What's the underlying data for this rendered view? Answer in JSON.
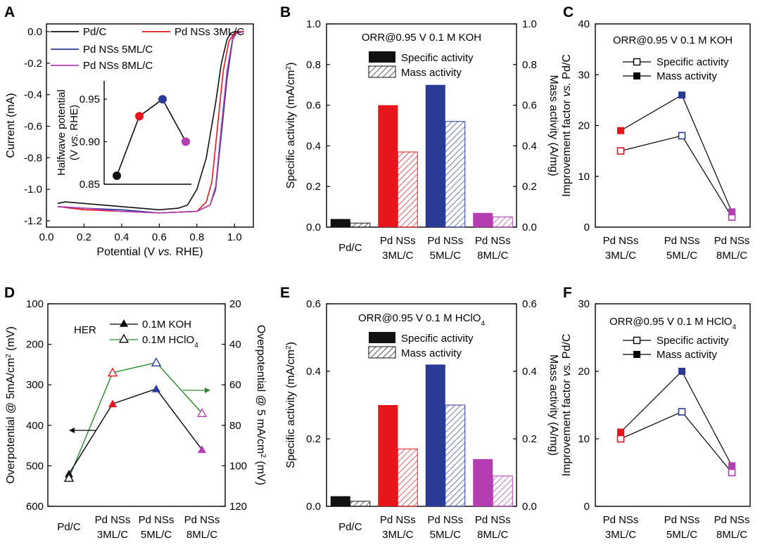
{
  "colors": {
    "black": "#111111",
    "red": "#e8161c",
    "blue": "#2b3a97",
    "magenta": "#b43db1",
    "green": "#2a8a2a"
  },
  "panels": {
    "a": "A",
    "b": "B",
    "c": "C",
    "d": "D",
    "e": "E",
    "f": "F"
  },
  "chart_data": [
    {
      "id": "A",
      "type": "line",
      "xlabel_pre": "Potential (V ",
      "xlabel_it": "vs.",
      "xlabel_post": " RHE)",
      "ylabel": "Current (mA)",
      "xlim": [
        0,
        1.1
      ],
      "ylim": [
        -1.2,
        0.0
      ],
      "xticks": [
        "0.0",
        "0.2",
        "0.4",
        "0.6",
        "0.8",
        "1.0"
      ],
      "yticks": [
        "0.0",
        "-0.2",
        "-0.4",
        "-0.6",
        "-0.8",
        "-1.0",
        "-1.2"
      ],
      "series": [
        {
          "name": "Pd/C",
          "color": "black",
          "x": [
            0.06,
            0.1,
            0.2,
            0.3,
            0.4,
            0.5,
            0.6,
            0.7,
            0.75,
            0.8,
            0.85,
            0.9,
            0.93,
            0.96,
            0.98,
            1.0,
            1.05
          ],
          "y": [
            -1.09,
            -1.08,
            -1.09,
            -1.1,
            -1.11,
            -1.12,
            -1.13,
            -1.12,
            -1.1,
            -1.0,
            -0.8,
            -0.45,
            -0.2,
            -0.05,
            -0.01,
            0.0,
            0.0
          ]
        },
        {
          "name": "Pd NSs 3ML/C",
          "color": "red",
          "x": [
            0.06,
            0.2,
            0.4,
            0.6,
            0.8,
            0.85,
            0.88,
            0.91,
            0.94,
            0.97,
            1.0,
            1.02,
            1.05
          ],
          "y": [
            -1.11,
            -1.13,
            -1.14,
            -1.15,
            -1.14,
            -1.08,
            -0.95,
            -0.6,
            -0.25,
            -0.06,
            -0.01,
            0.0,
            0.0
          ]
        },
        {
          "name": "Pd NSs 5ML/C",
          "color": "blue",
          "x": [
            0.06,
            0.2,
            0.4,
            0.6,
            0.8,
            0.87,
            0.9,
            0.93,
            0.96,
            0.99,
            1.01,
            1.05
          ],
          "y": [
            -1.11,
            -1.12,
            -1.13,
            -1.15,
            -1.14,
            -1.1,
            -1.0,
            -0.65,
            -0.3,
            -0.05,
            -0.01,
            0.0
          ]
        },
        {
          "name": "Pd NSs 8ML/C",
          "color": "magenta",
          "x": [
            0.06,
            0.2,
            0.4,
            0.6,
            0.8,
            0.87,
            0.9,
            0.93,
            0.96,
            0.99,
            1.01,
            1.05
          ],
          "y": [
            -1.11,
            -1.12,
            -1.14,
            -1.15,
            -1.14,
            -1.1,
            -0.98,
            -0.6,
            -0.25,
            -0.04,
            -0.01,
            0.0
          ]
        }
      ],
      "inset": {
        "ylabel_l1": "Halfwave potential",
        "ylabel_l2_pre": "(V ",
        "ylabel_l2_it": "vs.",
        "ylabel_l2_post": " RHE)",
        "yticks": [
          "0.85",
          "0.90",
          "0.95"
        ],
        "ylim": [
          0.85,
          0.96
        ],
        "points": [
          {
            "color": "black",
            "value": 0.86
          },
          {
            "color": "red",
            "value": 0.93
          },
          {
            "color": "blue",
            "value": 0.95
          },
          {
            "color": "magenta",
            "value": 0.9
          }
        ]
      }
    },
    {
      "id": "B",
      "type": "bar",
      "title": "ORR@0.95 V 0.1 M KOH",
      "ylabel_pre": "Specific activity (mA/cm",
      "ylabel_sup": "2",
      "ylabel_post": ")",
      "y2label": "Mass activity (A/mg)",
      "ylim": [
        0,
        1.0
      ],
      "y2lim": [
        0,
        1.0
      ],
      "yticks": [
        "0.0",
        "0.2",
        "0.4",
        "0.6",
        "0.8",
        "1.0"
      ],
      "y2ticks": [
        "0.0",
        "0.2",
        "0.4",
        "0.6",
        "0.8",
        "1.0"
      ],
      "legend": [
        "Specific activity",
        "Mass activity"
      ],
      "categories": [
        {
          "l1": "Pd/C",
          "l2": "",
          "color": "black"
        },
        {
          "l1": "Pd NSs",
          "l2": "3ML/C",
          "color": "red"
        },
        {
          "l1": "Pd NSs",
          "l2": "5ML/C",
          "color": "blue"
        },
        {
          "l1": "Pd NSs",
          "l2": "8ML/C",
          "color": "magenta"
        }
      ],
      "specific": [
        0.04,
        0.6,
        0.7,
        0.07
      ],
      "mass": [
        0.02,
        0.37,
        0.52,
        0.05
      ]
    },
    {
      "id": "C",
      "type": "line",
      "title": "ORR@0.95 V 0.1 M KOH",
      "ylabel_pre": "Improvement factor ",
      "ylabel_it": "vs.",
      "ylabel_post": " Pd/C",
      "ylim": [
        0,
        40
      ],
      "yticks": [
        "0",
        "10",
        "20",
        "30",
        "40"
      ],
      "legend": [
        "Specific activity",
        "Mass activity"
      ],
      "categories": [
        {
          "l1": "Pd NSs",
          "l2": "3ML/C",
          "color": "red"
        },
        {
          "l1": "Pd NSs",
          "l2": "5ML/C",
          "color": "blue"
        },
        {
          "l1": "Pd NSs",
          "l2": "8ML/C",
          "color": "magenta"
        }
      ],
      "specific": [
        15,
        18,
        2
      ],
      "mass": [
        19,
        26,
        3
      ]
    },
    {
      "id": "D",
      "type": "line",
      "annotation": "HER",
      "ylabel_pre": "Overpotential @ 5mA/cm",
      "ylabel_sup": "2",
      "ylabel_post": " (mV)",
      "y2label_pre": "Overpotential @ 5 mA/cm",
      "y2label_sup": "2",
      "y2label_post": " (mV)",
      "ylim": [
        100,
        600
      ],
      "y2lim": [
        20,
        120
      ],
      "yticks": [
        "100",
        "200",
        "300",
        "400",
        "500",
        "600"
      ],
      "y2ticks": [
        "20",
        "40",
        "60",
        "80",
        "100",
        "120"
      ],
      "legend_koh": "0.1M KOH",
      "legend_hclo4_pre": "0.1M HClO",
      "legend_hclo4_sub": "4",
      "categories": [
        {
          "l1": "Pd/C",
          "l2": "",
          "color": "black"
        },
        {
          "l1": "Pd NSs",
          "l2": "3ML/C",
          "color": "red"
        },
        {
          "l1": "Pd NSs",
          "l2": "5ML/C",
          "color": "blue"
        },
        {
          "l1": "Pd NSs",
          "l2": "8ML/C",
          "color": "magenta"
        }
      ],
      "koh": [
        520,
        347,
        310,
        460
      ],
      "hclo4": [
        106,
        54,
        49,
        74
      ]
    },
    {
      "id": "E",
      "type": "bar",
      "title_pre": "ORR@0.95 V 0.1 M HClO",
      "title_sub": "4",
      "ylabel_pre": "Specific activity (mA/cm",
      "ylabel_sup": "2",
      "ylabel_post": ")",
      "y2label": "Mass activity (A/mg)",
      "ylim": [
        0,
        0.6
      ],
      "y2lim": [
        0,
        0.6
      ],
      "yticks": [
        "0.0",
        "0.2",
        "0.4",
        "0.6"
      ],
      "y2ticks": [
        "0.0",
        "0.2",
        "0.4",
        "0.6"
      ],
      "legend": [
        "Specific activity",
        "Mass activity"
      ],
      "categories": [
        {
          "l1": "Pd/C",
          "l2": "",
          "color": "black"
        },
        {
          "l1": "Pd NSs",
          "l2": "3ML/C",
          "color": "red"
        },
        {
          "l1": "Pd NSs",
          "l2": "5ML/C",
          "color": "blue"
        },
        {
          "l1": "Pd NSs",
          "l2": "8ML/C",
          "color": "magenta"
        }
      ],
      "specific": [
        0.03,
        0.3,
        0.42,
        0.14
      ],
      "mass": [
        0.015,
        0.17,
        0.3,
        0.09
      ]
    },
    {
      "id": "F",
      "type": "line",
      "title_pre": "ORR@0.95 V 0.1 M HClO",
      "title_sub": "4",
      "ylabel_pre": "Improvement factor ",
      "ylabel_it": "vs.",
      "ylabel_post": " Pd/C",
      "ylim": [
        0,
        30
      ],
      "yticks": [
        "0",
        "10",
        "20",
        "30"
      ],
      "legend": [
        "Specific activity",
        "Mass activity"
      ],
      "categories": [
        {
          "l1": "Pd NSs",
          "l2": "3ML/C",
          "color": "red"
        },
        {
          "l1": "Pd NSs",
          "l2": "5ML/C",
          "color": "blue"
        },
        {
          "l1": "Pd NSs",
          "l2": "8ML/C",
          "color": "magenta"
        }
      ],
      "specific": [
        10,
        14,
        5
      ],
      "mass": [
        11,
        20,
        6
      ]
    }
  ]
}
